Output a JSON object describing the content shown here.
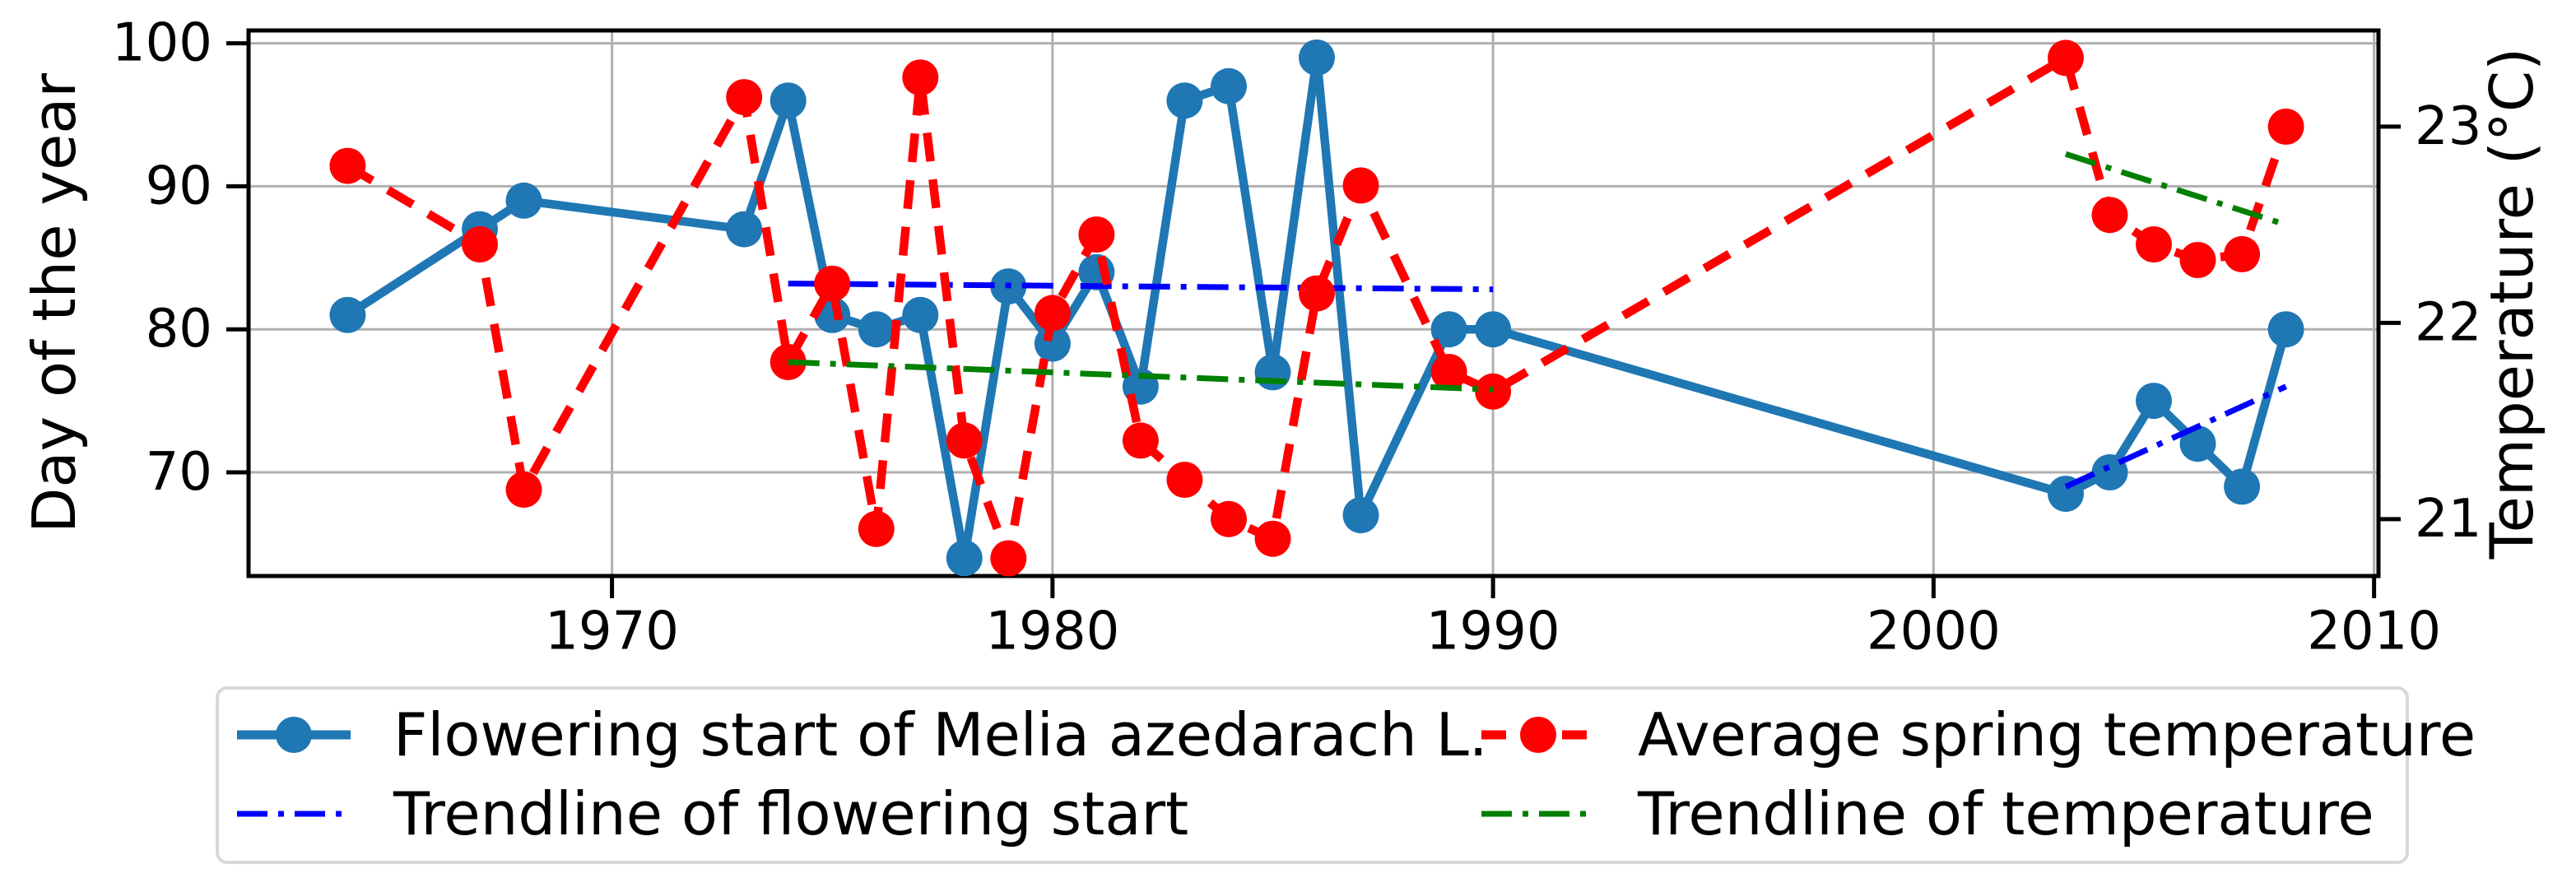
{
  "chart_data": {
    "type": "line",
    "title": "",
    "x_axis": {
      "label": "",
      "ticks": [
        1970,
        1980,
        1990,
        2000,
        2010
      ],
      "range": [
        1961.75,
        2010.1
      ],
      "grid": true
    },
    "left_axis": {
      "label": "Day of the year",
      "ticks": [
        70,
        80,
        90,
        100
      ],
      "range": [
        62.75,
        100.9
      ],
      "grid": true
    },
    "right_axis": {
      "label": "Temperature (°C)",
      "ticks": [
        21,
        22,
        23
      ],
      "range": [
        20.71,
        23.49
      ],
      "grid": false
    },
    "series": [
      {
        "name": "Flowering start of Melia azedarach L.",
        "axis": "left",
        "type": "line-markers",
        "line_style": "solid",
        "color": "#1f77b4",
        "points": [
          [
            1964,
            81
          ],
          [
            1967,
            87
          ],
          [
            1968,
            89
          ],
          [
            1973,
            87
          ],
          [
            1974,
            96
          ],
          [
            1975,
            81
          ],
          [
            1976,
            80
          ],
          [
            1977,
            81
          ],
          [
            1978,
            64
          ],
          [
            1979,
            83
          ],
          [
            1980,
            79
          ],
          [
            1981,
            84
          ],
          [
            1982,
            76
          ],
          [
            1983,
            96
          ],
          [
            1984,
            97
          ],
          [
            1985,
            77
          ],
          [
            1986,
            99
          ],
          [
            1987,
            67
          ],
          [
            1989,
            80
          ],
          [
            1990,
            80
          ],
          [
            2003,
            68.5
          ],
          [
            2004,
            70
          ],
          [
            2005,
            75
          ],
          [
            2006,
            72
          ],
          [
            2007,
            69
          ],
          [
            2008,
            80
          ]
        ]
      },
      {
        "name": "Average spring temperature",
        "axis": "right",
        "type": "line-markers",
        "line_style": "dashed",
        "color": "#ff0000",
        "points": [
          [
            1964,
            22.8
          ],
          [
            1967,
            22.4
          ],
          [
            1968,
            21.15
          ],
          [
            1973,
            23.15
          ],
          [
            1974,
            21.8
          ],
          [
            1975,
            22.2
          ],
          [
            1976,
            20.95
          ],
          [
            1977,
            23.25
          ],
          [
            1978,
            21.4
          ],
          [
            1979,
            20.8
          ],
          [
            1980,
            22.05
          ],
          [
            1981,
            22.45
          ],
          [
            1982,
            21.4
          ],
          [
            1983,
            21.2
          ],
          [
            1984,
            21.0
          ],
          [
            1985,
            20.9
          ],
          [
            1986,
            22.15
          ],
          [
            1987,
            22.7
          ],
          [
            1989,
            21.75
          ],
          [
            1990,
            21.65
          ],
          [
            2003,
            23.35
          ],
          [
            2004,
            22.55
          ],
          [
            2005,
            22.4
          ],
          [
            2006,
            22.32
          ],
          [
            2007,
            22.35
          ],
          [
            2008,
            23.0
          ]
        ]
      },
      {
        "name": "Trendline of flowering start",
        "axis": "left",
        "type": "trendline",
        "line_style": "dashdot",
        "color": "#0000ff",
        "segments": [
          [
            [
              1974,
              83.2
            ],
            [
              1990,
              82.8
            ]
          ],
          [
            [
              2003,
              69
            ],
            [
              2008,
              76
            ]
          ]
        ]
      },
      {
        "name": "Trendline of temperature",
        "axis": "right",
        "type": "trendline",
        "line_style": "dashdot",
        "color": "#008000",
        "segments": [
          [
            [
              1974,
              21.8
            ],
            [
              1990,
              21.66
            ]
          ],
          [
            [
              2003,
              22.86
            ],
            [
              2008,
              22.5
            ]
          ]
        ]
      }
    ],
    "legend_position": "below",
    "z_order": [
      0,
      2,
      1,
      3
    ]
  },
  "colors": {
    "grid": "#b0b0b0",
    "axis": "#000000",
    "legend_border": "#d8d8d8",
    "background": "#ffffff"
  }
}
